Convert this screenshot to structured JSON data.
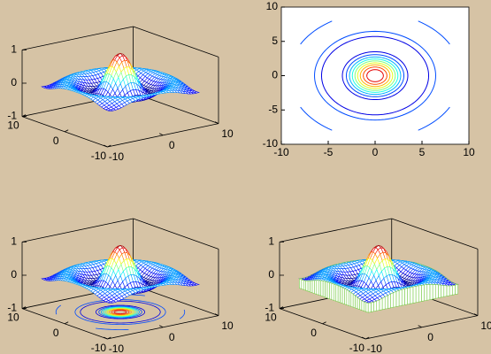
{
  "chart_data": [
    {
      "type": "mesh",
      "xlim": [
        -10,
        10
      ],
      "ylim": [
        -10,
        10
      ],
      "zlim": [
        -1,
        1
      ],
      "xticks": [
        -10,
        0,
        10
      ],
      "yticks": [
        -10,
        0,
        10
      ],
      "zticks": [
        -1,
        0,
        1
      ]
    },
    {
      "type": "contour",
      "xlim": [
        -10,
        10
      ],
      "ylim": [
        -10,
        10
      ],
      "xticks": [
        -10,
        -5,
        0,
        5,
        10
      ],
      "yticks": [
        -10,
        -5,
        0,
        5,
        10
      ]
    },
    {
      "type": "meshc",
      "xlim": [
        -10,
        10
      ],
      "ylim": [
        -10,
        10
      ],
      "zlim": [
        -1,
        1
      ],
      "xticks": [
        -10,
        0,
        10
      ],
      "yticks": [
        -10,
        0,
        10
      ],
      "zticks": [
        -1,
        0,
        1
      ]
    },
    {
      "type": "meshz",
      "xlim": [
        -10,
        10
      ],
      "ylim": [
        -10,
        10
      ],
      "zlim": [
        -1,
        1
      ],
      "xticks": [
        -10,
        0,
        10
      ],
      "yticks": [
        -10,
        0,
        10
      ],
      "zticks": [
        -1,
        0,
        1
      ]
    }
  ]
}
